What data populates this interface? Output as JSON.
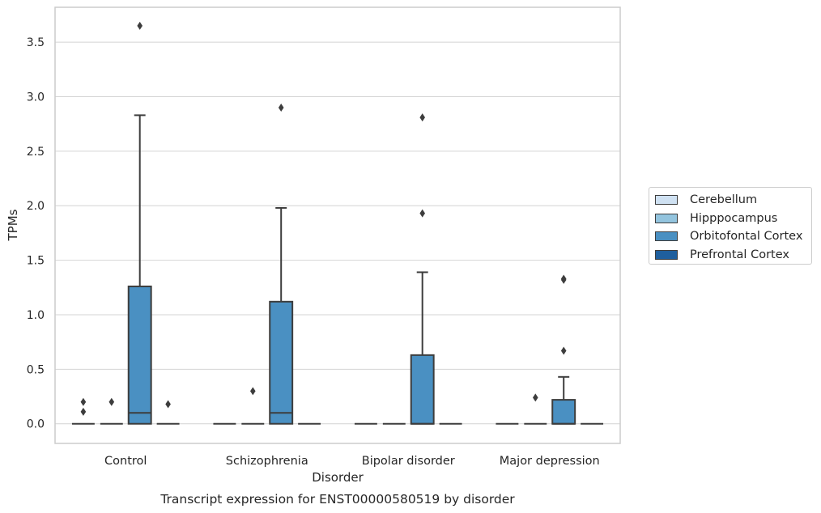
{
  "chart_data": {
    "type": "box",
    "xlabel": "Disorder",
    "ylabel": "TPMs",
    "caption": "Transcript expression for ENST00000580519 by disorder",
    "ylim": [
      -0.18,
      3.82
    ],
    "yticks": [
      0.0,
      0.5,
      1.0,
      1.5,
      2.0,
      2.5,
      3.0,
      3.5
    ],
    "ytick_labels": [
      "0.0",
      "0.5",
      "1.0",
      "1.5",
      "2.0",
      "2.5",
      "3.0",
      "3.5"
    ],
    "grid": "horizontal",
    "legend_position": "right",
    "categories": [
      "Control",
      "Schizophrenia",
      "Bipolar disorder",
      "Major depression"
    ],
    "series": [
      {
        "name": "Cerebellum",
        "color": "#cfe1f2",
        "boxes": [
          {
            "category": "Control",
            "min": 0,
            "q1": 0,
            "median": 0,
            "q3": 0,
            "max": 0,
            "outliers": [
              0.2,
              0.11
            ]
          },
          {
            "category": "Schizophrenia",
            "min": 0,
            "q1": 0,
            "median": 0,
            "q3": 0,
            "max": 0,
            "outliers": []
          },
          {
            "category": "Bipolar disorder",
            "min": 0,
            "q1": 0,
            "median": 0,
            "q3": 0,
            "max": 0,
            "outliers": []
          },
          {
            "category": "Major depression",
            "min": 0,
            "q1": 0,
            "median": 0,
            "q3": 0,
            "max": 0,
            "outliers": []
          }
        ]
      },
      {
        "name": "Hipppocampus",
        "color": "#93c4de",
        "boxes": [
          {
            "category": "Control",
            "min": 0,
            "q1": 0,
            "median": 0,
            "q3": 0,
            "max": 0,
            "outliers": [
              0.2
            ]
          },
          {
            "category": "Schizophrenia",
            "min": 0,
            "q1": 0,
            "median": 0,
            "q3": 0,
            "max": 0,
            "outliers": [
              0.3
            ]
          },
          {
            "category": "Bipolar disorder",
            "min": 0,
            "q1": 0,
            "median": 0,
            "q3": 0,
            "max": 0,
            "outliers": []
          },
          {
            "category": "Major depression",
            "min": 0,
            "q1": 0,
            "median": 0,
            "q3": 0,
            "max": 0,
            "outliers": [
              0.24
            ]
          }
        ]
      },
      {
        "name": "Orbitofontal Cortex",
        "color": "#4a90c2",
        "boxes": [
          {
            "category": "Control",
            "min": 0,
            "q1": 0,
            "median": 0.1,
            "q3": 1.26,
            "max": 2.83,
            "outliers": [
              3.65
            ]
          },
          {
            "category": "Schizophrenia",
            "min": 0,
            "q1": 0,
            "median": 0.1,
            "q3": 1.12,
            "max": 1.98,
            "outliers": [
              2.9
            ]
          },
          {
            "category": "Bipolar disorder",
            "min": 0,
            "q1": 0,
            "median": 0,
            "q3": 0.63,
            "max": 1.39,
            "outliers": [
              2.81,
              1.93
            ]
          },
          {
            "category": "Major depression",
            "min": 0,
            "q1": 0,
            "median": 0,
            "q3": 0.22,
            "max": 0.43,
            "outliers": [
              1.33,
              1.32,
              0.67
            ]
          }
        ]
      },
      {
        "name": "Prefrontal Cortex",
        "color": "#1f5f9e",
        "boxes": [
          {
            "category": "Control",
            "min": 0,
            "q1": 0,
            "median": 0,
            "q3": 0,
            "max": 0,
            "outliers": [
              0.18
            ]
          },
          {
            "category": "Schizophrenia",
            "min": 0,
            "q1": 0,
            "median": 0,
            "q3": 0,
            "max": 0,
            "outliers": []
          },
          {
            "category": "Bipolar disorder",
            "min": 0,
            "q1": 0,
            "median": 0,
            "q3": 0,
            "max": 0,
            "outliers": []
          },
          {
            "category": "Major depression",
            "min": 0,
            "q1": 0,
            "median": 0,
            "q3": 0,
            "max": 0,
            "outliers": []
          }
        ]
      }
    ]
  }
}
